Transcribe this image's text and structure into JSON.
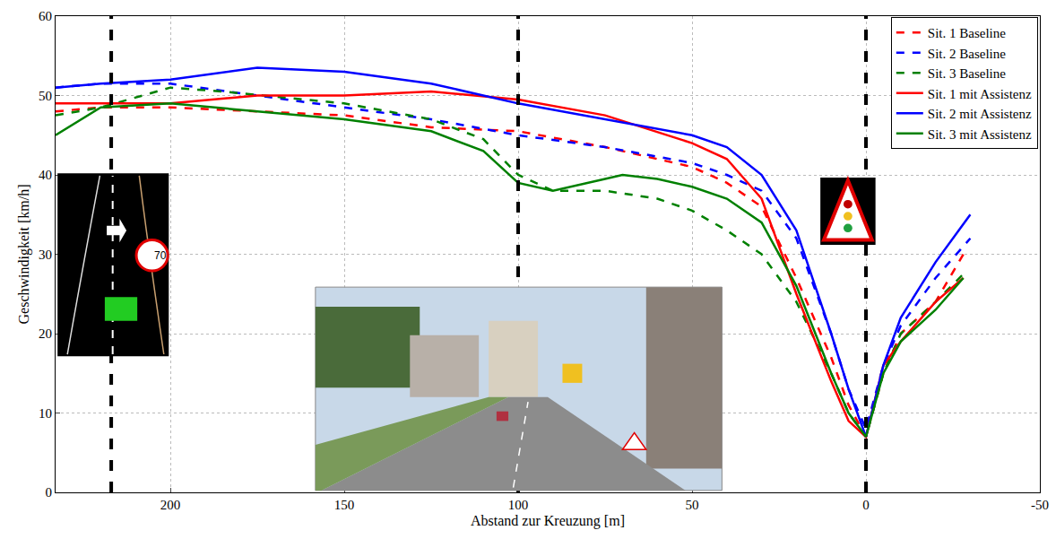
{
  "chart_data": {
    "type": "line",
    "x_label": "Abstand zur Kreuzung [m]",
    "y_label": "Geschwindigkeit [km/h]",
    "xlim": [
      233,
      -50
    ],
    "ylim": [
      0,
      60
    ],
    "xticks": [
      200,
      150,
      100,
      50,
      0,
      -50
    ],
    "yticks": [
      0,
      10,
      20,
      30,
      40,
      50,
      60
    ],
    "grid": true,
    "legend": "top right",
    "reference_lines": [
      217,
      100,
      0
    ],
    "annotations": [
      "70"
    ],
    "series": [
      {
        "name": "Sit. 1 Baseline",
        "color": "#ff0000",
        "line_style": "dash",
        "x": [
          233,
          220,
          200,
          175,
          150,
          125,
          100,
          75,
          50,
          40,
          30,
          20,
          10,
          5,
          0,
          -5,
          -10,
          -20,
          -28
        ],
        "values": [
          48,
          48.5,
          48.5,
          48,
          47.5,
          46,
          45.5,
          43.5,
          41,
          39,
          36,
          27,
          17,
          11,
          7,
          15,
          20,
          24,
          30
        ]
      },
      {
        "name": "Sit. 2 Baseline",
        "color": "#0000ff",
        "line_style": "dash",
        "x": [
          233,
          220,
          200,
          175,
          150,
          125,
          100,
          75,
          50,
          40,
          30,
          20,
          10,
          5,
          0,
          -5,
          -10,
          -20,
          -30
        ],
        "values": [
          51,
          51.5,
          51.5,
          50,
          48.5,
          47,
          45,
          43.5,
          41.5,
          40,
          38,
          32,
          20,
          13,
          8,
          16,
          21,
          27,
          32
        ]
      },
      {
        "name": "Sit. 3 Baseline",
        "color": "#008000",
        "line_style": "dash",
        "x": [
          233,
          220,
          200,
          185,
          150,
          125,
          110,
          100,
          90,
          75,
          60,
          50,
          40,
          30,
          20,
          10,
          5,
          0,
          -5,
          -10,
          -20,
          -28
        ],
        "values": [
          47.5,
          48.5,
          51,
          50.5,
          49,
          47,
          44.5,
          40,
          38,
          38,
          37,
          35.5,
          33,
          30,
          24,
          15,
          10,
          7,
          15,
          20,
          24,
          27.5
        ]
      },
      {
        "name": "Sit. 1 mit Assistenz",
        "color": "#ff0000",
        "line_style": "solid",
        "x": [
          233,
          220,
          200,
          175,
          150,
          125,
          100,
          75,
          50,
          40,
          30,
          20,
          10,
          5,
          0,
          -5,
          -10,
          -20,
          -28
        ],
        "values": [
          49,
          49,
          49,
          50,
          50,
          50.5,
          49.5,
          47.5,
          44,
          42,
          37,
          25,
          14,
          9,
          7,
          16,
          19,
          24,
          27
        ]
      },
      {
        "name": "Sit. 2 mit Assistenz",
        "color": "#0000ff",
        "line_style": "solid",
        "x": [
          233,
          220,
          200,
          175,
          150,
          125,
          100,
          75,
          50,
          40,
          30,
          20,
          10,
          5,
          0,
          -5,
          -10,
          -20,
          -30
        ],
        "values": [
          51,
          51.5,
          52,
          53.5,
          53,
          51.5,
          49,
          47,
          45,
          43.5,
          40,
          33,
          20,
          13,
          7,
          16,
          22,
          29,
          35
        ]
      },
      {
        "name": "Sit. 3 mit Assistenz",
        "color": "#008000",
        "line_style": "solid",
        "x": [
          233,
          220,
          200,
          175,
          150,
          125,
          110,
          100,
          90,
          75,
          70,
          60,
          50,
          40,
          30,
          20,
          10,
          5,
          0,
          -5,
          -10,
          -20,
          -28
        ],
        "values": [
          45,
          48.5,
          49,
          48,
          47,
          45.5,
          43,
          39,
          38,
          39.5,
          40,
          39.5,
          38.5,
          37,
          34,
          26,
          15,
          10,
          7,
          15,
          19,
          23,
          27
        ]
      }
    ]
  }
}
